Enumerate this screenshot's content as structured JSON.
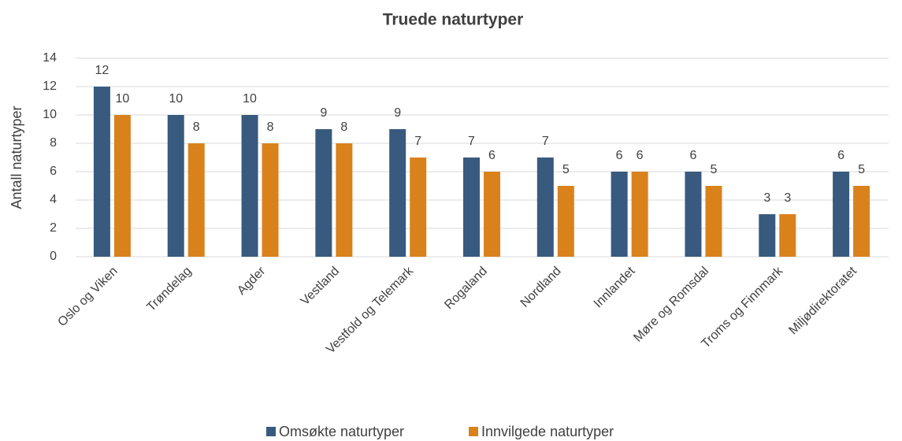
{
  "chart_data": {
    "type": "bar",
    "title": "Truede naturtyper",
    "y_label": "Antall naturtyper",
    "categories": [
      "Oslo og Viken",
      "Trøndelag",
      "Agder",
      "Vestland",
      "Vestfold og Telemark",
      "Rogaland",
      "Nordland",
      "Innlandet",
      "Møre og Romsdal",
      "Troms og Finnmark",
      "Miljødirektoratet"
    ],
    "series": [
      {
        "name": "Omsøkte naturtyper",
        "color": "#385a7e",
        "values": [
          12,
          10,
          10,
          9,
          9,
          7,
          7,
          6,
          6,
          3,
          6
        ]
      },
      {
        "name": "Innvilgede naturtyper",
        "color": "#d9821c",
        "values": [
          10,
          8,
          8,
          8,
          7,
          6,
          5,
          6,
          5,
          3,
          5
        ]
      }
    ],
    "ylim": [
      0,
      14
    ],
    "yticks": [
      0,
      2,
      4,
      6,
      8,
      10,
      12,
      14
    ],
    "grid": true,
    "legend": "bottom"
  }
}
